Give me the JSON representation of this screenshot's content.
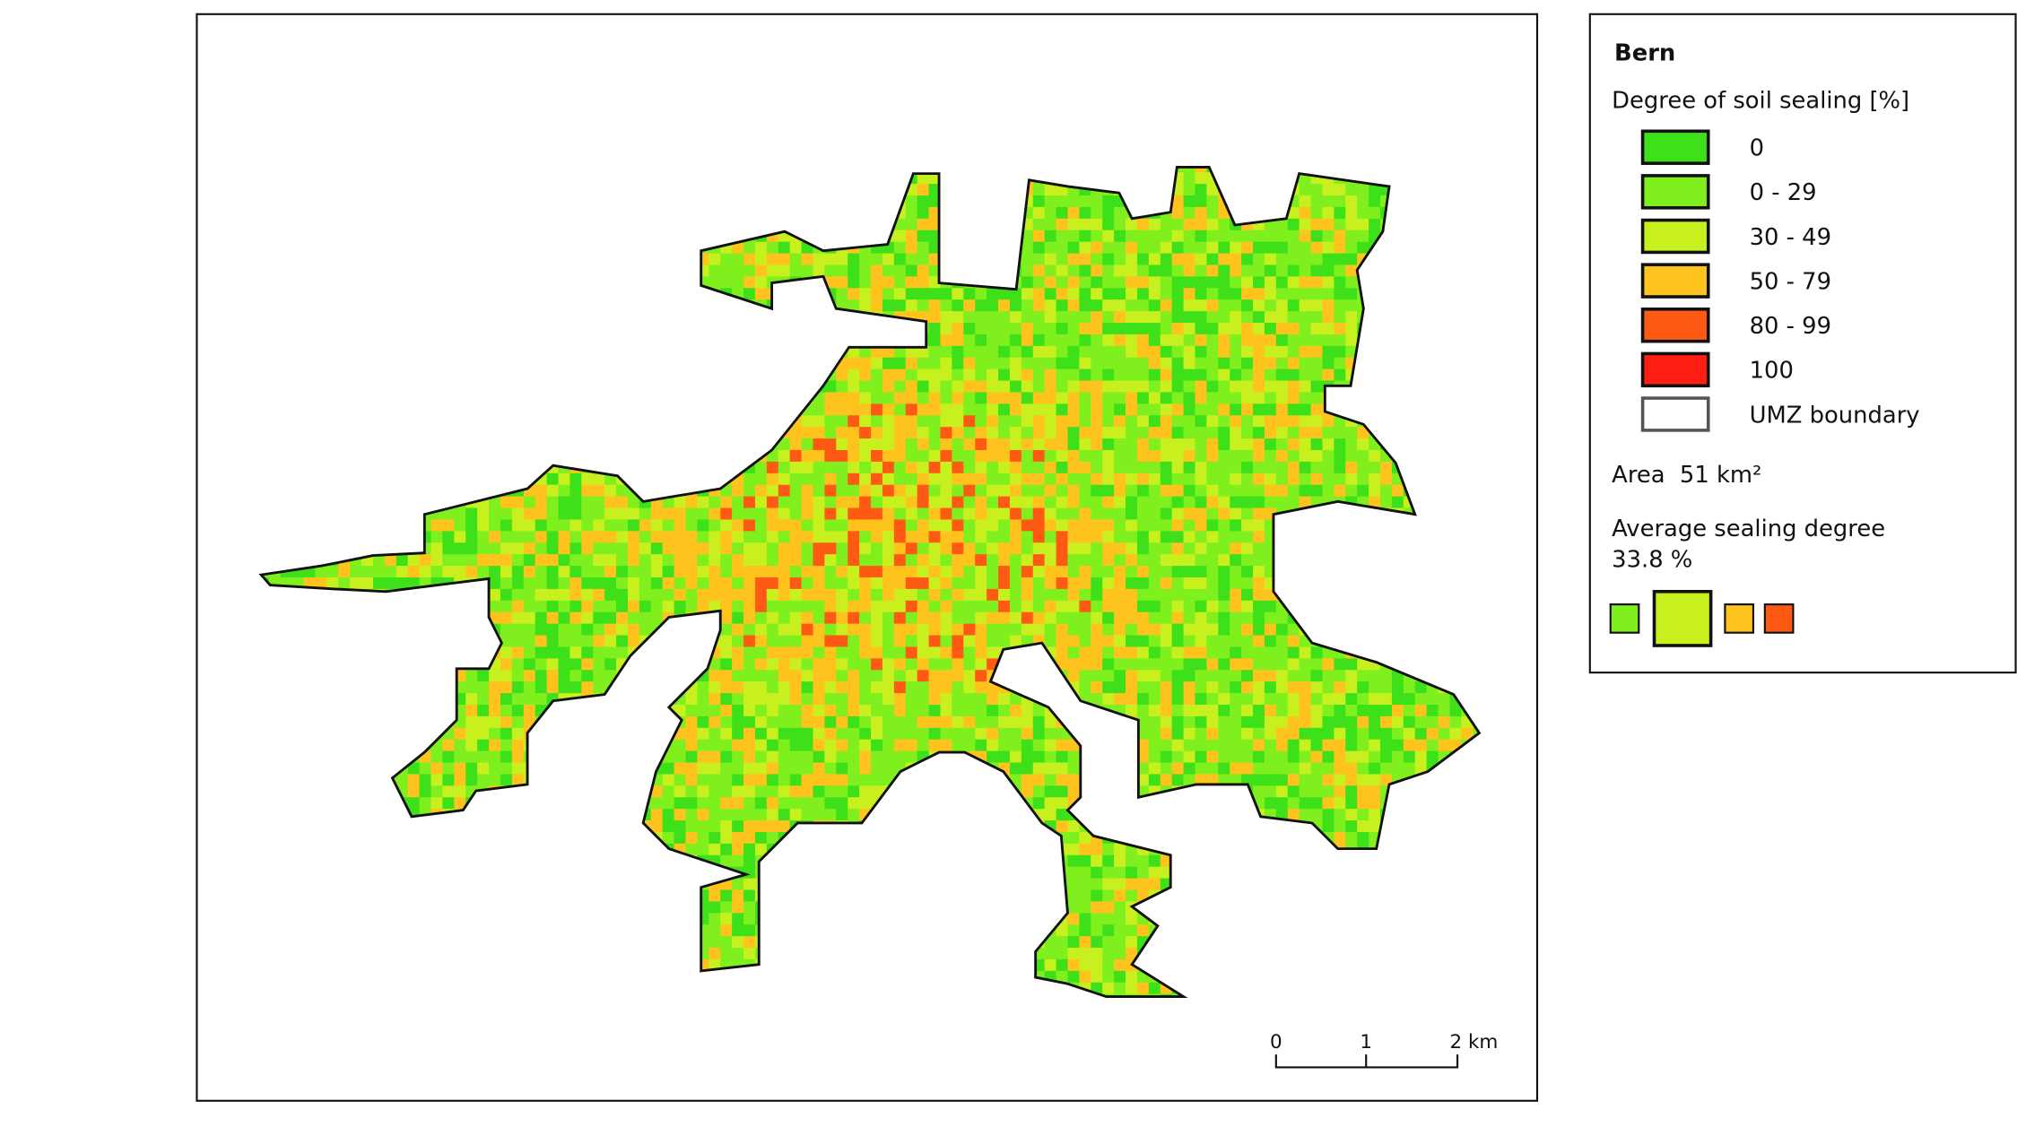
{
  "legend": {
    "title": "Bern",
    "subtitle": "Degree of soil sealing [%]",
    "classes": [
      "0",
      "0 - 29",
      "30 - 49",
      "50 - 79",
      "80 - 99",
      "100",
      "UMZ boundary"
    ],
    "area": "Area  51 km²",
    "average_label": "Average sealing degree",
    "average_value": "33.8 %"
  },
  "scale_bar": {
    "labels": [
      "0",
      "1",
      "2 km"
    ]
  }
}
